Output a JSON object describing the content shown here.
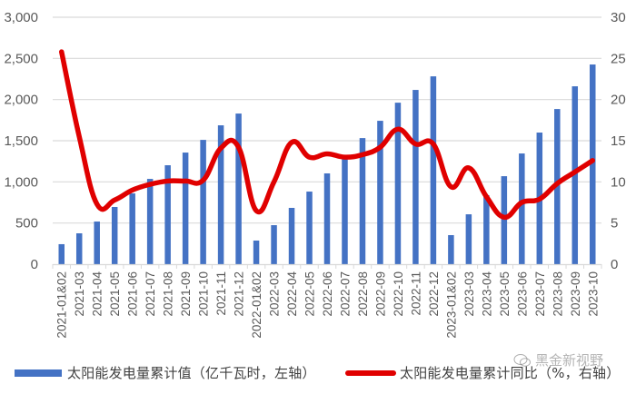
{
  "chart_data": {
    "type": "bar+line",
    "title": "",
    "categories": [
      "2021-01&02",
      "2021-03",
      "2021-04",
      "2021-05",
      "2021-06",
      "2021-07",
      "2021-08",
      "2021-09",
      "2021-10",
      "2021-11",
      "2021-12",
      "2022-01&02",
      "2022-03",
      "2022-04",
      "2022-05",
      "2022-06",
      "2022-07",
      "2022-08",
      "2022-09",
      "2022-10",
      "2022-11",
      "2022-12",
      "2023-01&02",
      "2023-03",
      "2023-04",
      "2023-05",
      "2023-06",
      "2023-07",
      "2023-08",
      "2023-09",
      "2023-10"
    ],
    "series": [
      {
        "name": "太阳能发电量累计值（亿千瓦时，左轴）",
        "type": "bar",
        "axis": "left",
        "color": "#4472C4",
        "values": [
          243,
          375,
          518,
          695,
          860,
          1036,
          1202,
          1356,
          1510,
          1687,
          1830,
          287,
          474,
          684,
          882,
          1103,
          1280,
          1532,
          1742,
          1962,
          2117,
          2282,
          353,
          606,
          838,
          1069,
          1345,
          1599,
          1885,
          2161,
          2426
        ]
      },
      {
        "name": "太阳能发电量累计同比（%，右轴）",
        "type": "line",
        "axis": "right",
        "color": "#E00000",
        "values": [
          25.8,
          15.5,
          7.3,
          7.8,
          9.0,
          9.7,
          10.1,
          10.1,
          10.2,
          14.1,
          14.2,
          6.5,
          10.0,
          14.8,
          13.0,
          13.4,
          13.0,
          13.3,
          14.2,
          16.4,
          14.6,
          14.6,
          9.4,
          11.7,
          8.2,
          5.7,
          7.5,
          7.9,
          9.8,
          11.2,
          12.6
        ]
      }
    ],
    "left_axis": {
      "ylim": [
        0,
        3000
      ],
      "ticks": [
        0,
        500,
        1000,
        1500,
        2000,
        2500,
        3000
      ],
      "tick_labels": [
        "0",
        "500",
        "1,000",
        "1,500",
        "2,000",
        "2,500",
        "3,000"
      ]
    },
    "right_axis": {
      "ylim": [
        0,
        30
      ],
      "ticks": [
        0,
        5,
        10,
        15,
        20,
        25,
        30
      ],
      "tick_labels": [
        "0",
        "5",
        "10",
        "15",
        "20",
        "25",
        "30"
      ]
    },
    "xlabel": "",
    "ylabel": "",
    "grid": true,
    "legend_position": "bottom"
  },
  "legend": {
    "bar_label": "太阳能发电量累计值（亿千瓦时，左轴）",
    "line_label": "太阳能发电量累计同比（%，右轴）"
  },
  "watermark": {
    "text": "黑金新视野",
    "icon": "wechat-icon"
  }
}
